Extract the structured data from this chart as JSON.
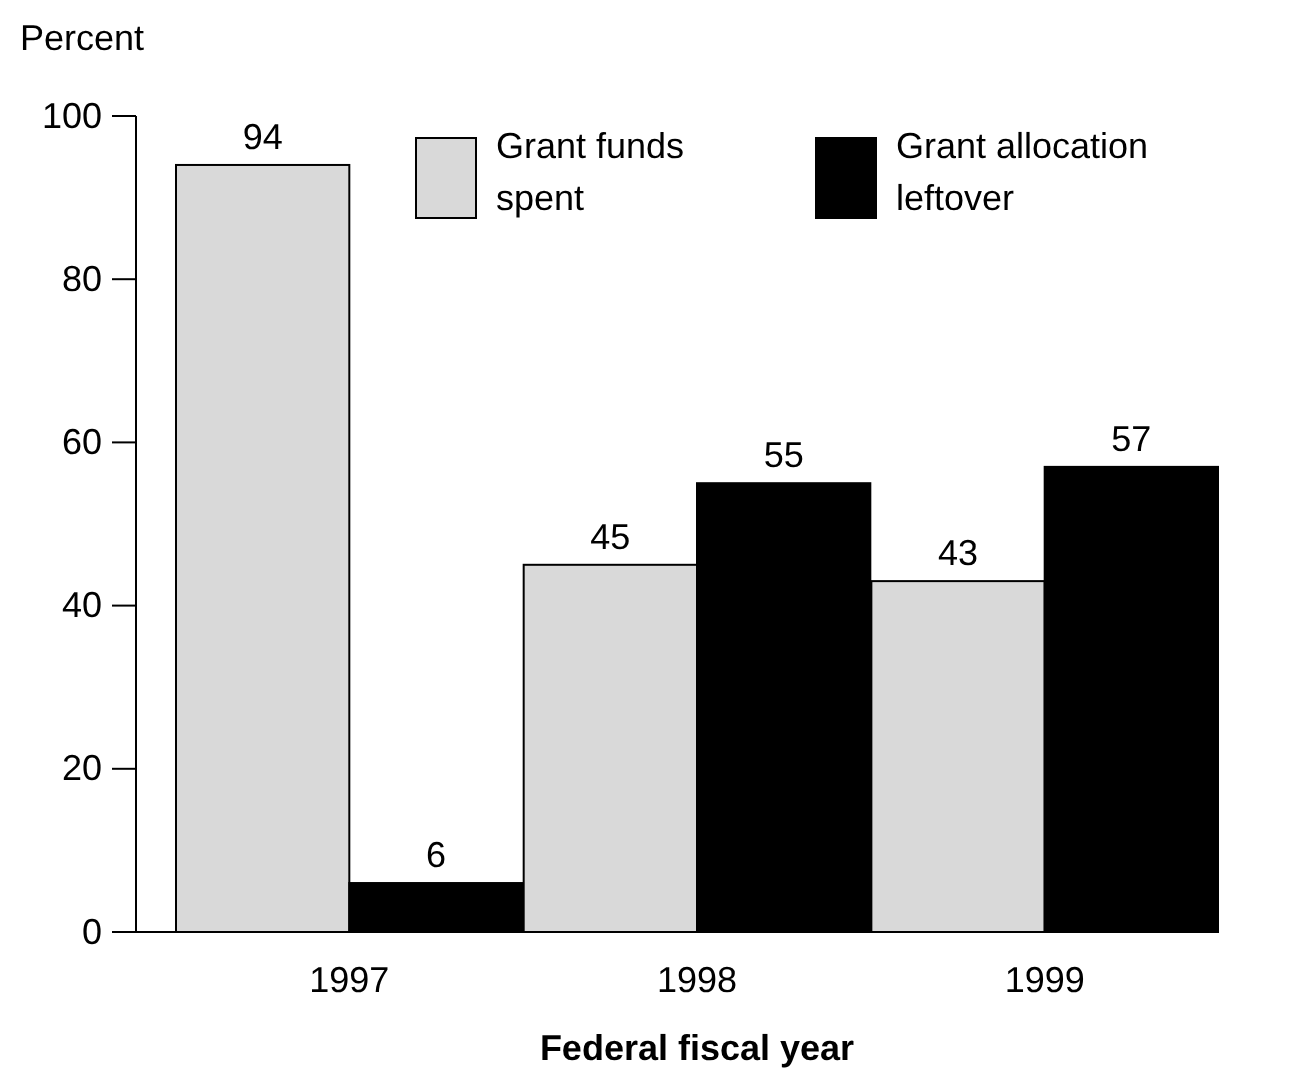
{
  "chart_data": {
    "type": "bar",
    "xlabel": "Federal fiscal year",
    "ylabel": "Percent",
    "categories": [
      "1997",
      "1998",
      "1999"
    ],
    "series": [
      {
        "name": "Grant funds spent",
        "color": "#d9d9d9",
        "values": [
          94,
          45,
          43
        ]
      },
      {
        "name": "Grant allocation leftover",
        "color": "#000000",
        "values": [
          6,
          55,
          57
        ]
      }
    ],
    "ylim": [
      0,
      100
    ],
    "yticks": [
      0,
      20,
      40,
      60,
      80,
      100
    ],
    "data_labels": true,
    "legend": "top right",
    "grid": false
  }
}
